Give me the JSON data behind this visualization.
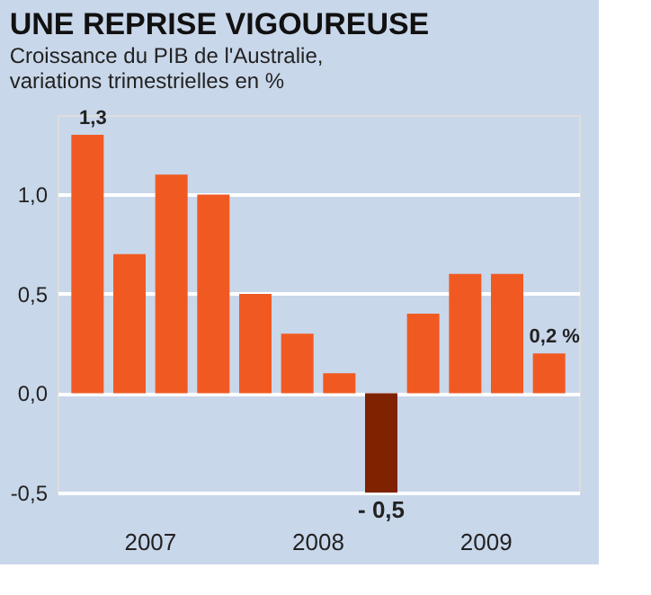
{
  "chart_data": {
    "type": "bar",
    "title": "UNE REPRISE VIGOUREUSE",
    "subtitle": "Croissance du PIB de l'Australie,\nvariations trimestrielles en %",
    "categories": [
      null,
      null,
      null,
      null,
      null,
      null,
      null,
      null,
      null,
      null,
      null,
      null
    ],
    "annotations": [
      "2007",
      "2008",
      "2009"
    ],
    "values": [
      1.3,
      0.7,
      1.1,
      1.0,
      0.5,
      0.3,
      0.1,
      -0.5,
      0.4,
      0.6,
      0.6,
      0.2
    ],
    "colors": [
      "#f05a22",
      "#f05a22",
      "#f05a22",
      "#f05a22",
      "#f05a22",
      "#f05a22",
      "#f05a22",
      "#7f2200",
      "#f05a22",
      "#f05a22",
      "#f05a22",
      "#f05a22"
    ],
    "value_labels": [
      "1,3",
      null,
      null,
      null,
      null,
      null,
      null,
      "- 0,5",
      null,
      null,
      null,
      "0,2 %"
    ],
    "ylim": [
      -0.5,
      1.4
    ],
    "yticks": [
      {
        "value": -0.5,
        "label": "-0,5"
      },
      {
        "value": 0,
        "label": "0,0"
      },
      {
        "value": 0.5,
        "label": "0,5"
      },
      {
        "value": 1.0,
        "label": "1,0"
      }
    ],
    "grid": "y"
  }
}
